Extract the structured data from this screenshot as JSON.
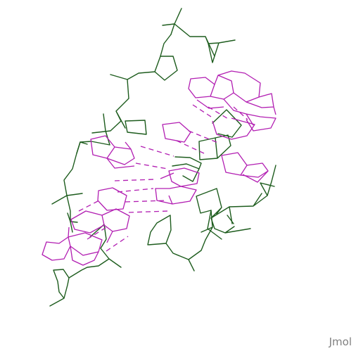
{
  "viewer": {
    "watermark": "Jmol",
    "colors": {
      "background": "#ffffff",
      "backbone": "#1d5c1d",
      "base": "#b21eb2",
      "watermark": "#808080"
    }
  }
}
